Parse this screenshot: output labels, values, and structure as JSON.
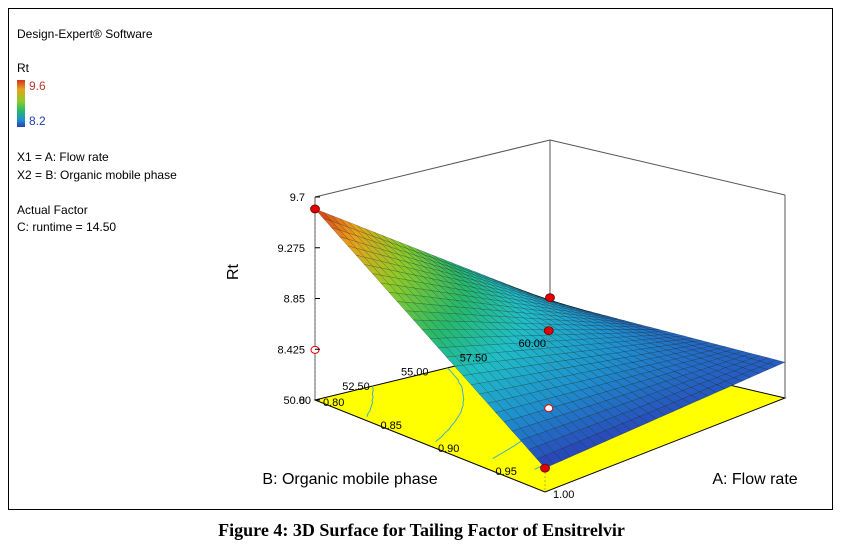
{
  "software_label": "Design-Expert® Software",
  "legend": {
    "response": "Rt",
    "max_label": "9.6",
    "min_label": "8.2",
    "max_color": "#c0392b",
    "min_color": "#1f3fb0"
  },
  "factors": {
    "x1": "X1 = A: Flow rate",
    "x2": "X2 = B: Organic mobile phase"
  },
  "actual_factor": {
    "heading": "Actual Factor",
    "value": "C: runtime = 14.50"
  },
  "caption": "Figure 4: 3D Surface for Tailing Factor of Ensitrelvir",
  "chart_data": {
    "type": "surface",
    "zlabel": "Rt",
    "xlabel": "A: Flow rate",
    "ylabel": "B: Organic mobile phase",
    "x_ticks": [
      "0.80",
      "0.85",
      "0.90",
      "0.95",
      "1.00"
    ],
    "y_ticks": [
      "50.00",
      "52.50",
      "55.00",
      "57.50",
      "60.00"
    ],
    "z_ticks": [
      "8",
      "8.425",
      "8.85",
      "9.275",
      "9.7"
    ],
    "xlim": [
      0.8,
      1.0
    ],
    "ylim": [
      50,
      60
    ],
    "zlim": [
      8,
      9.7
    ],
    "corner_values": [
      {
        "flow_rate": 0.8,
        "organic_phase": 50,
        "rt": 9.6
      },
      {
        "flow_rate": 1.0,
        "organic_phase": 50,
        "rt": 8.2
      },
      {
        "flow_rate": 0.8,
        "organic_phase": 60,
        "rt": 8.35
      },
      {
        "flow_rate": 1.0,
        "organic_phase": 60,
        "rt": 8.3
      }
    ],
    "design_points": [
      {
        "flow_rate": 0.8,
        "organic_phase": 50,
        "rt": 9.6
      },
      {
        "flow_rate": 1.0,
        "organic_phase": 50,
        "rt": 8.2
      },
      {
        "flow_rate": 0.9,
        "organic_phase": 55,
        "rt": 8.65
      },
      {
        "flow_rate": 0.8,
        "organic_phase": 60,
        "rt": 8.38
      }
    ],
    "colors": {
      "floor": "#ffff00",
      "contour": "#3fb0c8",
      "point": "#e00000"
    }
  }
}
